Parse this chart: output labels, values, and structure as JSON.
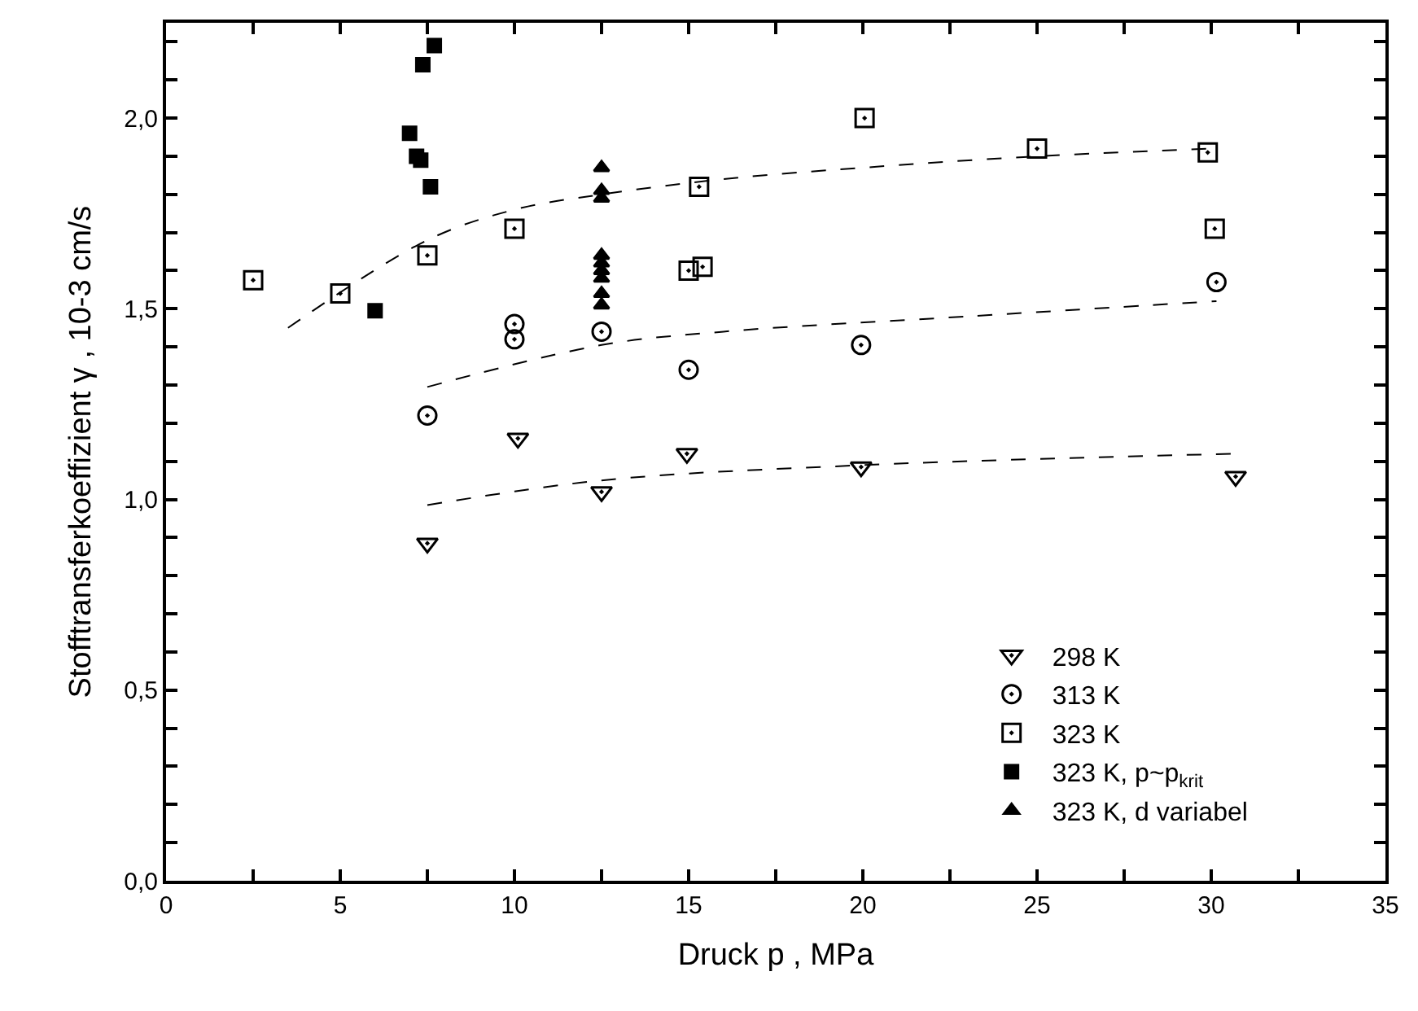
{
  "chart_data": {
    "type": "scatter",
    "xlabel": "Druck p , MPa",
    "ylabel": "Stofftransferkoeffizient γ , 10-3 cm/s",
    "xlim": [
      0,
      35
    ],
    "ylim": [
      0,
      2.25
    ],
    "xticks": [
      0,
      {
        "value": 2.5,
        "label": null
      },
      5,
      {
        "value": 7.5,
        "label": null
      },
      10,
      {
        "value": 12.5,
        "label": null
      },
      15,
      {
        "value": 17.5,
        "label": null
      },
      20,
      {
        "value": 22.5,
        "label": null
      },
      25,
      {
        "value": 27.5,
        "label": null
      },
      30,
      {
        "value": 32.5,
        "label": null
      },
      35
    ],
    "yticks": [
      {
        "value": 0,
        "label": "0,0"
      },
      {
        "value": 0.1,
        "label": null
      },
      {
        "value": 0.2,
        "label": null
      },
      {
        "value": 0.3,
        "label": null
      },
      {
        "value": 0.4,
        "label": null
      },
      {
        "value": 0.5,
        "label": "0,5"
      },
      {
        "value": 0.6,
        "label": null
      },
      {
        "value": 0.7,
        "label": null
      },
      {
        "value": 0.8,
        "label": null
      },
      {
        "value": 0.9,
        "label": null
      },
      {
        "value": 1.0,
        "label": "1,0"
      },
      {
        "value": 1.1,
        "label": null
      },
      {
        "value": 1.2,
        "label": null
      },
      {
        "value": 1.3,
        "label": null
      },
      {
        "value": 1.4,
        "label": null
      },
      {
        "value": 1.5,
        "label": "1,5"
      },
      {
        "value": 1.6,
        "label": null
      },
      {
        "value": 1.7,
        "label": null
      },
      {
        "value": 1.8,
        "label": null
      },
      {
        "value": 1.9,
        "label": null
      },
      {
        "value": 2.0,
        "label": "2,0"
      },
      {
        "value": 2.1,
        "label": null
      },
      {
        "value": 2.2,
        "label": null
      }
    ],
    "legend": "bottom right",
    "series": [
      {
        "name": "298 K",
        "color": "#000000",
        "marker": "triangle",
        "x": [
          7.5,
          10.1,
          12.5,
          14.95,
          19.95,
          30.7
        ],
        "values": [
          0.885,
          1.16,
          1.02,
          1.12,
          1.085,
          1.06
        ]
      },
      {
        "name": "313 K",
        "color": "#000000",
        "marker": "circle",
        "x": [
          7.5,
          10,
          10,
          12.5,
          15,
          19.95,
          30.15
        ],
        "values": [
          1.22,
          1.46,
          1.42,
          1.44,
          1.34,
          1.405,
          1.57
        ]
      },
      {
        "name": "323 K",
        "color": "#000000",
        "marker": "square",
        "x": [
          2.5,
          5,
          7.5,
          10,
          15,
          15.4,
          15.3,
          20.05,
          25,
          29.9,
          30.1
        ],
        "values": [
          1.575,
          1.54,
          1.64,
          1.71,
          1.6,
          1.61,
          1.82,
          2.0,
          1.92,
          1.91,
          1.71
        ]
      },
      {
        "name": "323 K, p~p$_{krit}$",
        "color": "#000000",
        "marker": "square",
        "x": [
          6.0,
          6.99,
          7.19,
          7.31,
          7.37,
          7.59,
          7.7
        ],
        "values": [
          1.495,
          1.96,
          1.9,
          1.89,
          2.14,
          1.82,
          2.19
        ]
      },
      {
        "name": "323 K, d variabel",
        "color": "#000000",
        "marker": "triangle",
        "x": [
          12.5,
          12.5,
          12.5,
          12.5,
          12.5,
          12.5,
          12.5,
          12.5,
          12.5
        ],
        "values": [
          1.87,
          1.81,
          1.79,
          1.64,
          1.62,
          1.6,
          1.58,
          1.54,
          1.51
        ]
      },
      {
        "type": "line",
        "color": "#000000",
        "line_style": "dashed",
        "marker": "none",
        "x": [
          3.5,
          7.5,
          10,
          12.5,
          16,
          20,
          25,
          30
        ],
        "values": [
          1.45,
          1.68,
          1.76,
          1.8,
          1.84,
          1.87,
          1.9,
          1.92
        ]
      },
      {
        "type": "line",
        "color": "#000000",
        "line_style": "dashed",
        "marker": "none",
        "x": [
          7.5,
          12.5,
          16,
          23,
          30.15
        ],
        "values": [
          1.295,
          1.405,
          1.44,
          1.48,
          1.52
        ]
      },
      {
        "type": "line",
        "color": "#000000",
        "line_style": "dashed",
        "marker": "none",
        "x": [
          7.5,
          12.5,
          20,
          30.7
        ],
        "values": [
          0.985,
          1.05,
          1.09,
          1.12
        ]
      }
    ]
  }
}
